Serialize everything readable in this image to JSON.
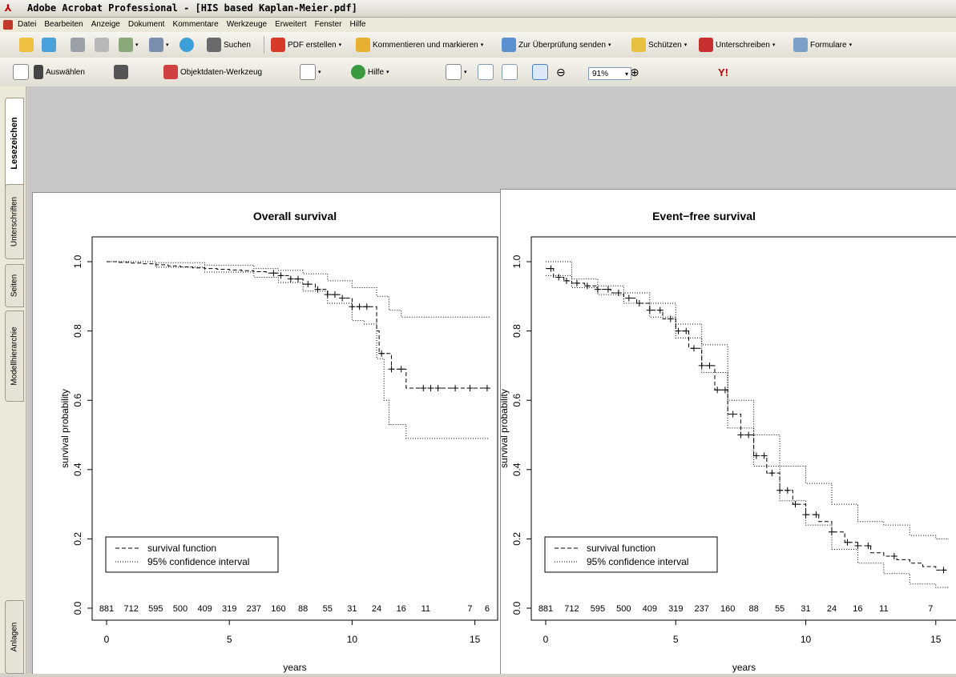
{
  "window": {
    "title": "Adobe Acrobat Professional - [HIS based Kaplan-Meier.pdf]"
  },
  "menu": [
    "Datei",
    "Bearbeiten",
    "Anzeige",
    "Dokument",
    "Kommentare",
    "Werkzeuge",
    "Erweitert",
    "Fenster",
    "Hilfe"
  ],
  "toolbar1": {
    "search": "Suchen",
    "create_pdf": "PDF erstellen",
    "comment": "Kommentieren und markieren",
    "review": "Zur Überprüfung senden",
    "protect": "Schützen",
    "sign": "Unterschreiben",
    "forms": "Formulare"
  },
  "toolbar2": {
    "select": "Auswählen",
    "object_data": "Objektdaten-Werkzeug",
    "help": "Hilfe",
    "zoom": "91%",
    "yahoo": "Y!"
  },
  "nav_tabs": [
    "Lesezeichen",
    "Unterschriften",
    "Seiten",
    "Modellhierarchie",
    "Anlagen"
  ],
  "colors": {
    "titlebar": "#e4e1d6",
    "page_bg": "#c7c7c7",
    "accent_red": "#c00000"
  },
  "chart_data": [
    {
      "type": "line",
      "title": "Overall survival",
      "xlabel": "years",
      "ylabel": "survival probability",
      "xlim": [
        0,
        15.6
      ],
      "ylim": [
        0,
        1.0
      ],
      "xticks": [
        0,
        5,
        10,
        15
      ],
      "yticks": [
        "0.0",
        "0.2",
        "0.4",
        "0.6",
        "0.8",
        "1.0"
      ],
      "legend": {
        "position": "bottom-left",
        "entries": [
          "survival function",
          "95% confidence interval"
        ]
      },
      "at_risk": {
        "x": [
          0,
          1,
          2,
          3,
          4,
          5,
          6,
          7,
          8,
          9,
          10,
          11,
          12,
          13,
          14.8,
          15.5
        ],
        "labels": [
          "881",
          "712",
          "595",
          "500",
          "409",
          "319",
          "237",
          "160",
          "88",
          "55",
          "31",
          "24",
          "16",
          "11",
          "7",
          "6"
        ]
      },
      "series": [
        {
          "name": "survival function",
          "x": [
            0,
            0.5,
            1,
            1.5,
            2,
            2.5,
            3,
            3.5,
            4,
            4.5,
            5,
            5.5,
            6,
            6.5,
            7,
            7.5,
            8,
            8.5,
            9,
            9.5,
            10,
            10.5,
            11,
            11.1,
            11.3,
            11.6,
            12,
            12.2,
            15.6
          ],
          "y": [
            1.0,
            0.998,
            0.996,
            0.994,
            0.991,
            0.988,
            0.985,
            0.982,
            0.98,
            0.978,
            0.976,
            0.974,
            0.971,
            0.967,
            0.96,
            0.95,
            0.935,
            0.92,
            0.905,
            0.895,
            0.87,
            0.87,
            0.8,
            0.735,
            0.735,
            0.69,
            0.69,
            0.635,
            0.635
          ]
        },
        {
          "name": "95% CI upper",
          "x": [
            0,
            2,
            4,
            6,
            7,
            8,
            9,
            10,
            11,
            11.5,
            12,
            15.6
          ],
          "y": [
            1.0,
            0.997,
            0.99,
            0.98,
            0.975,
            0.965,
            0.945,
            0.925,
            0.9,
            0.86,
            0.84,
            0.84
          ]
        },
        {
          "name": "95% CI lower",
          "x": [
            0,
            2,
            4,
            6,
            7,
            8,
            9,
            10,
            10.5,
            11,
            11.3,
            11.5,
            12,
            12.2,
            15.6
          ],
          "y": [
            1.0,
            0.984,
            0.97,
            0.955,
            0.94,
            0.915,
            0.88,
            0.83,
            0.82,
            0.72,
            0.6,
            0.53,
            0.53,
            0.49,
            0.49
          ]
        }
      ],
      "censor_x": [
        6.8,
        7.1,
        7.5,
        7.8,
        8.2,
        8.6,
        9.0,
        9.3,
        9.6,
        10.0,
        10.3,
        10.6,
        11.2,
        11.6,
        12.0,
        12.9,
        13.2,
        13.5,
        14.2,
        14.8,
        15.5
      ]
    },
    {
      "type": "line",
      "title": "Event−free survival",
      "xlabel": "years",
      "ylabel": "survival probability",
      "xlim": [
        0,
        15.5
      ],
      "ylim": [
        0,
        1.0
      ],
      "xticks": [
        0,
        5,
        10,
        15
      ],
      "yticks": [
        "0.0",
        "0.2",
        "0.4",
        "0.6",
        "0.8",
        "1.0"
      ],
      "legend": {
        "position": "bottom-left",
        "entries": [
          "survival function",
          "95% confidence interval"
        ]
      },
      "at_risk": {
        "x": [
          0,
          1,
          2,
          3,
          4,
          5,
          6,
          7,
          8,
          9,
          10,
          11,
          12,
          13,
          14.8
        ],
        "labels": [
          "881",
          "712",
          "595",
          "500",
          "409",
          "319",
          "237",
          "160",
          "88",
          "55",
          "31",
          "24",
          "16",
          "11",
          "7"
        ]
      },
      "series": [
        {
          "name": "survival function",
          "x": [
            0,
            0.3,
            0.7,
            1,
            1.5,
            2,
            2.5,
            3,
            3.5,
            4,
            4.5,
            5,
            5.5,
            6,
            6.5,
            7,
            7.5,
            8,
            8.5,
            9,
            9.5,
            10,
            10.5,
            11,
            11.5,
            12,
            12.5,
            13,
            13.5,
            14,
            14.5,
            15,
            15.5
          ],
          "y": [
            0.98,
            0.955,
            0.945,
            0.938,
            0.93,
            0.92,
            0.91,
            0.895,
            0.88,
            0.86,
            0.835,
            0.8,
            0.75,
            0.7,
            0.63,
            0.56,
            0.5,
            0.44,
            0.39,
            0.34,
            0.3,
            0.27,
            0.25,
            0.22,
            0.19,
            0.18,
            0.16,
            0.15,
            0.14,
            0.13,
            0.12,
            0.11,
            0.11
          ]
        },
        {
          "name": "95% CI upper",
          "x": [
            0,
            1,
            2,
            3,
            4,
            5,
            6,
            7,
            8,
            9,
            10,
            11,
            12,
            13,
            14,
            15,
            15.5
          ],
          "y": [
            1.0,
            0.95,
            0.93,
            0.91,
            0.88,
            0.82,
            0.76,
            0.6,
            0.5,
            0.41,
            0.36,
            0.3,
            0.25,
            0.24,
            0.21,
            0.2,
            0.2
          ]
        },
        {
          "name": "95% CI lower",
          "x": [
            0,
            1,
            2,
            3,
            4,
            5,
            6,
            7,
            8,
            9,
            10,
            11,
            12,
            13,
            14,
            15,
            15.5
          ],
          "y": [
            0.96,
            0.925,
            0.905,
            0.88,
            0.84,
            0.78,
            0.68,
            0.52,
            0.41,
            0.31,
            0.24,
            0.17,
            0.13,
            0.1,
            0.07,
            0.06,
            0.06
          ]
        }
      ],
      "censor_x": [
        0.2,
        0.5,
        0.8,
        1.2,
        1.6,
        2.0,
        2.4,
        2.8,
        3.2,
        3.6,
        4.0,
        4.4,
        4.8,
        5.1,
        5.4,
        5.7,
        6.0,
        6.3,
        6.6,
        6.9,
        7.2,
        7.5,
        7.8,
        8.1,
        8.4,
        8.7,
        9.0,
        9.3,
        9.6,
        10.0,
        10.4,
        11.0,
        11.6,
        12.0,
        12.4,
        13.4,
        15.3
      ]
    }
  ]
}
